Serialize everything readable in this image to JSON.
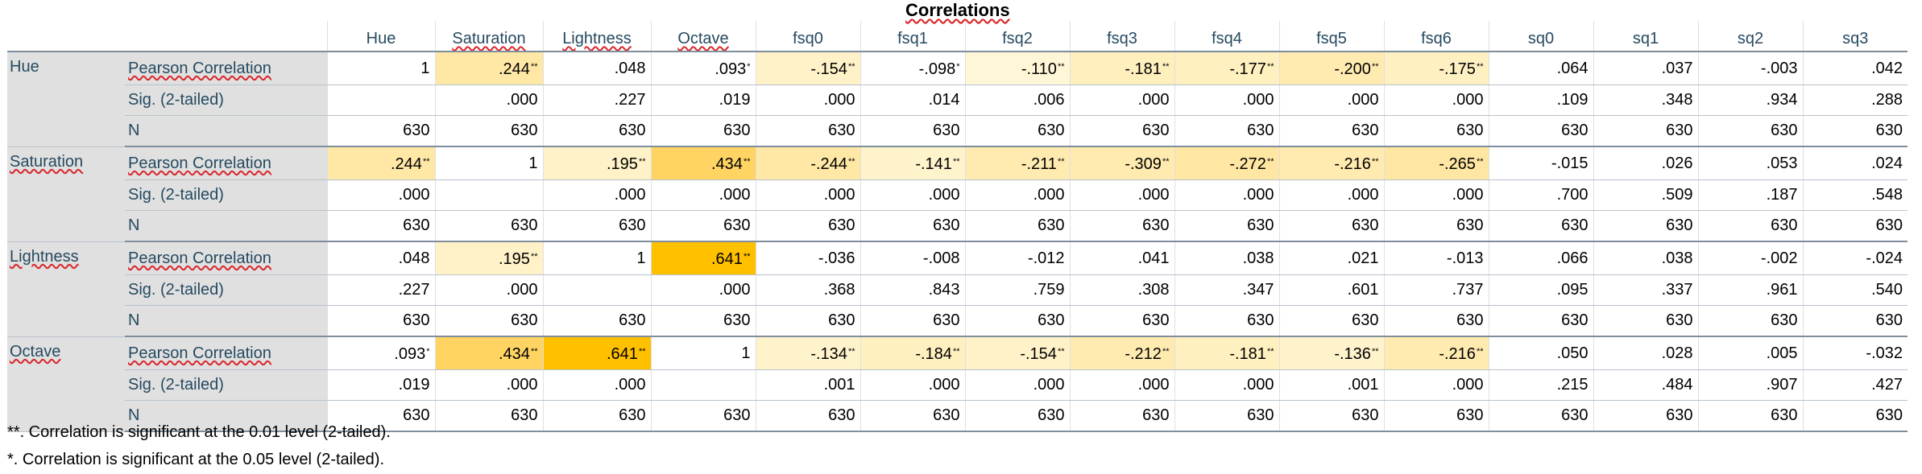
{
  "title": "Correlations",
  "columns": [
    "Hue",
    "Saturation",
    "Lightness",
    "Octave",
    "fsq0",
    "fsq1",
    "fsq2",
    "fsq3",
    "fsq4",
    "fsq5",
    "fsq6",
    "sq0",
    "sq1",
    "sq2",
    "sq3"
  ],
  "stat_labels": [
    "Pearson Correlation",
    "Sig. (2-tailed)",
    "N"
  ],
  "rows": [
    {
      "variable": "Hue",
      "pearson": [
        {
          "v": "1",
          "sig": ""
        },
        {
          "v": ".244",
          "sig": "**",
          "shade": "#ffe8a6"
        },
        {
          "v": ".048",
          "sig": ""
        },
        {
          "v": ".093",
          "sig": "*"
        },
        {
          "v": "-.154",
          "sig": "**",
          "shade": "#fff2c8"
        },
        {
          "v": "-.098",
          "sig": "*"
        },
        {
          "v": "-.110",
          "sig": "**",
          "shade": "#fff6d8"
        },
        {
          "v": "-.181",
          "sig": "**",
          "shade": "#ffefbd"
        },
        {
          "v": "-.177",
          "sig": "**",
          "shade": "#fff0c0"
        },
        {
          "v": "-.200",
          "sig": "**",
          "shade": "#ffeab0"
        },
        {
          "v": "-.175",
          "sig": "**",
          "shade": "#fff0c2"
        },
        {
          "v": ".064",
          "sig": ""
        },
        {
          "v": ".037",
          "sig": ""
        },
        {
          "v": "-.003",
          "sig": ""
        },
        {
          "v": ".042",
          "sig": ""
        }
      ],
      "sig": [
        "",
        ".000",
        ".227",
        ".019",
        ".000",
        ".014",
        ".006",
        ".000",
        ".000",
        ".000",
        ".000",
        ".109",
        ".348",
        ".934",
        ".288"
      ],
      "n": [
        "630",
        "630",
        "630",
        "630",
        "630",
        "630",
        "630",
        "630",
        "630",
        "630",
        "630",
        "630",
        "630",
        "630",
        "630"
      ]
    },
    {
      "variable": "Saturation",
      "pearson": [
        {
          "v": ".244",
          "sig": "**",
          "shade": "#ffe8a6"
        },
        {
          "v": "1",
          "sig": ""
        },
        {
          "v": ".195",
          "sig": "**",
          "shade": "#fff2c8"
        },
        {
          "v": ".434",
          "sig": "**",
          "shade": "#ffd463"
        },
        {
          "v": "-.244",
          "sig": "**",
          "shade": "#ffe8a6"
        },
        {
          "v": "-.141",
          "sig": "**",
          "shade": "#fff3cc"
        },
        {
          "v": "-.211",
          "sig": "**",
          "shade": "#ffeab0"
        },
        {
          "v": "-.309",
          "sig": "**",
          "shade": "#ffeab0"
        },
        {
          "v": "-.272",
          "sig": "**",
          "shade": "#ffe6a3"
        },
        {
          "v": "-.216",
          "sig": "**",
          "shade": "#ffeab0"
        },
        {
          "v": "-.265",
          "sig": "**",
          "shade": "#ffe6a3"
        },
        {
          "v": "-.015",
          "sig": ""
        },
        {
          "v": ".026",
          "sig": ""
        },
        {
          "v": ".053",
          "sig": ""
        },
        {
          "v": ".024",
          "sig": ""
        }
      ],
      "sig": [
        ".000",
        "",
        ".000",
        ".000",
        ".000",
        ".000",
        ".000",
        ".000",
        ".000",
        ".000",
        ".000",
        ".700",
        ".509",
        ".187",
        ".548"
      ],
      "n": [
        "630",
        "630",
        "630",
        "630",
        "630",
        "630",
        "630",
        "630",
        "630",
        "630",
        "630",
        "630",
        "630",
        "630",
        "630"
      ]
    },
    {
      "variable": "Lightness",
      "pearson": [
        {
          "v": ".048",
          "sig": ""
        },
        {
          "v": ".195",
          "sig": "**",
          "shade": "#fff2c8"
        },
        {
          "v": "1",
          "sig": ""
        },
        {
          "v": ".641",
          "sig": "**",
          "shade": "#ffc000"
        },
        {
          "v": "-.036",
          "sig": ""
        },
        {
          "v": "-.008",
          "sig": ""
        },
        {
          "v": "-.012",
          "sig": ""
        },
        {
          "v": ".041",
          "sig": ""
        },
        {
          "v": ".038",
          "sig": ""
        },
        {
          "v": ".021",
          "sig": ""
        },
        {
          "v": "-.013",
          "sig": ""
        },
        {
          "v": ".066",
          "sig": ""
        },
        {
          "v": ".038",
          "sig": ""
        },
        {
          "v": "-.002",
          "sig": ""
        },
        {
          "v": "-.024",
          "sig": ""
        }
      ],
      "sig": [
        ".227",
        ".000",
        "",
        ".000",
        ".368",
        ".843",
        ".759",
        ".308",
        ".347",
        ".601",
        ".737",
        ".095",
        ".337",
        ".961",
        ".540"
      ],
      "n": [
        "630",
        "630",
        "630",
        "630",
        "630",
        "630",
        "630",
        "630",
        "630",
        "630",
        "630",
        "630",
        "630",
        "630",
        "630"
      ]
    },
    {
      "variable": "Octave",
      "pearson": [
        {
          "v": ".093",
          "sig": "*"
        },
        {
          "v": ".434",
          "sig": "**",
          "shade": "#ffd463"
        },
        {
          "v": ".641",
          "sig": "**",
          "shade": "#ffc000"
        },
        {
          "v": "1",
          "sig": ""
        },
        {
          "v": "-.134",
          "sig": "**",
          "shade": "#fff3cc"
        },
        {
          "v": "-.184",
          "sig": "**",
          "shade": "#fff0c0"
        },
        {
          "v": "-.154",
          "sig": "**",
          "shade": "#fff2c8"
        },
        {
          "v": "-.212",
          "sig": "**",
          "shade": "#ffeab0"
        },
        {
          "v": "-.181",
          "sig": "**",
          "shade": "#fff0c0"
        },
        {
          "v": "-.136",
          "sig": "**",
          "shade": "#fff3cc"
        },
        {
          "v": "-.216",
          "sig": "**",
          "shade": "#ffeab0"
        },
        {
          "v": ".050",
          "sig": ""
        },
        {
          "v": ".028",
          "sig": ""
        },
        {
          "v": ".005",
          "sig": ""
        },
        {
          "v": "-.032",
          "sig": ""
        }
      ],
      "sig": [
        ".019",
        ".000",
        ".000",
        "",
        ".001",
        ".000",
        ".000",
        ".000",
        ".000",
        ".001",
        ".000",
        ".215",
        ".484",
        ".907",
        ".427"
      ],
      "n": [
        "630",
        "630",
        "630",
        "630",
        "630",
        "630",
        "630",
        "630",
        "630",
        "630",
        "630",
        "630",
        "630",
        "630",
        "630"
      ]
    }
  ],
  "footnotes": [
    "**. Correlation is significant at the 0.01 level (2-tailed).",
    "*. Correlation is significant at the 0.05 level (2-tailed)."
  ],
  "colors": {
    "label_bg": "#e0e0e0",
    "label_text": "#264a60",
    "border": "#7f8e9c",
    "spellcheck_underline": "#d9262b"
  }
}
